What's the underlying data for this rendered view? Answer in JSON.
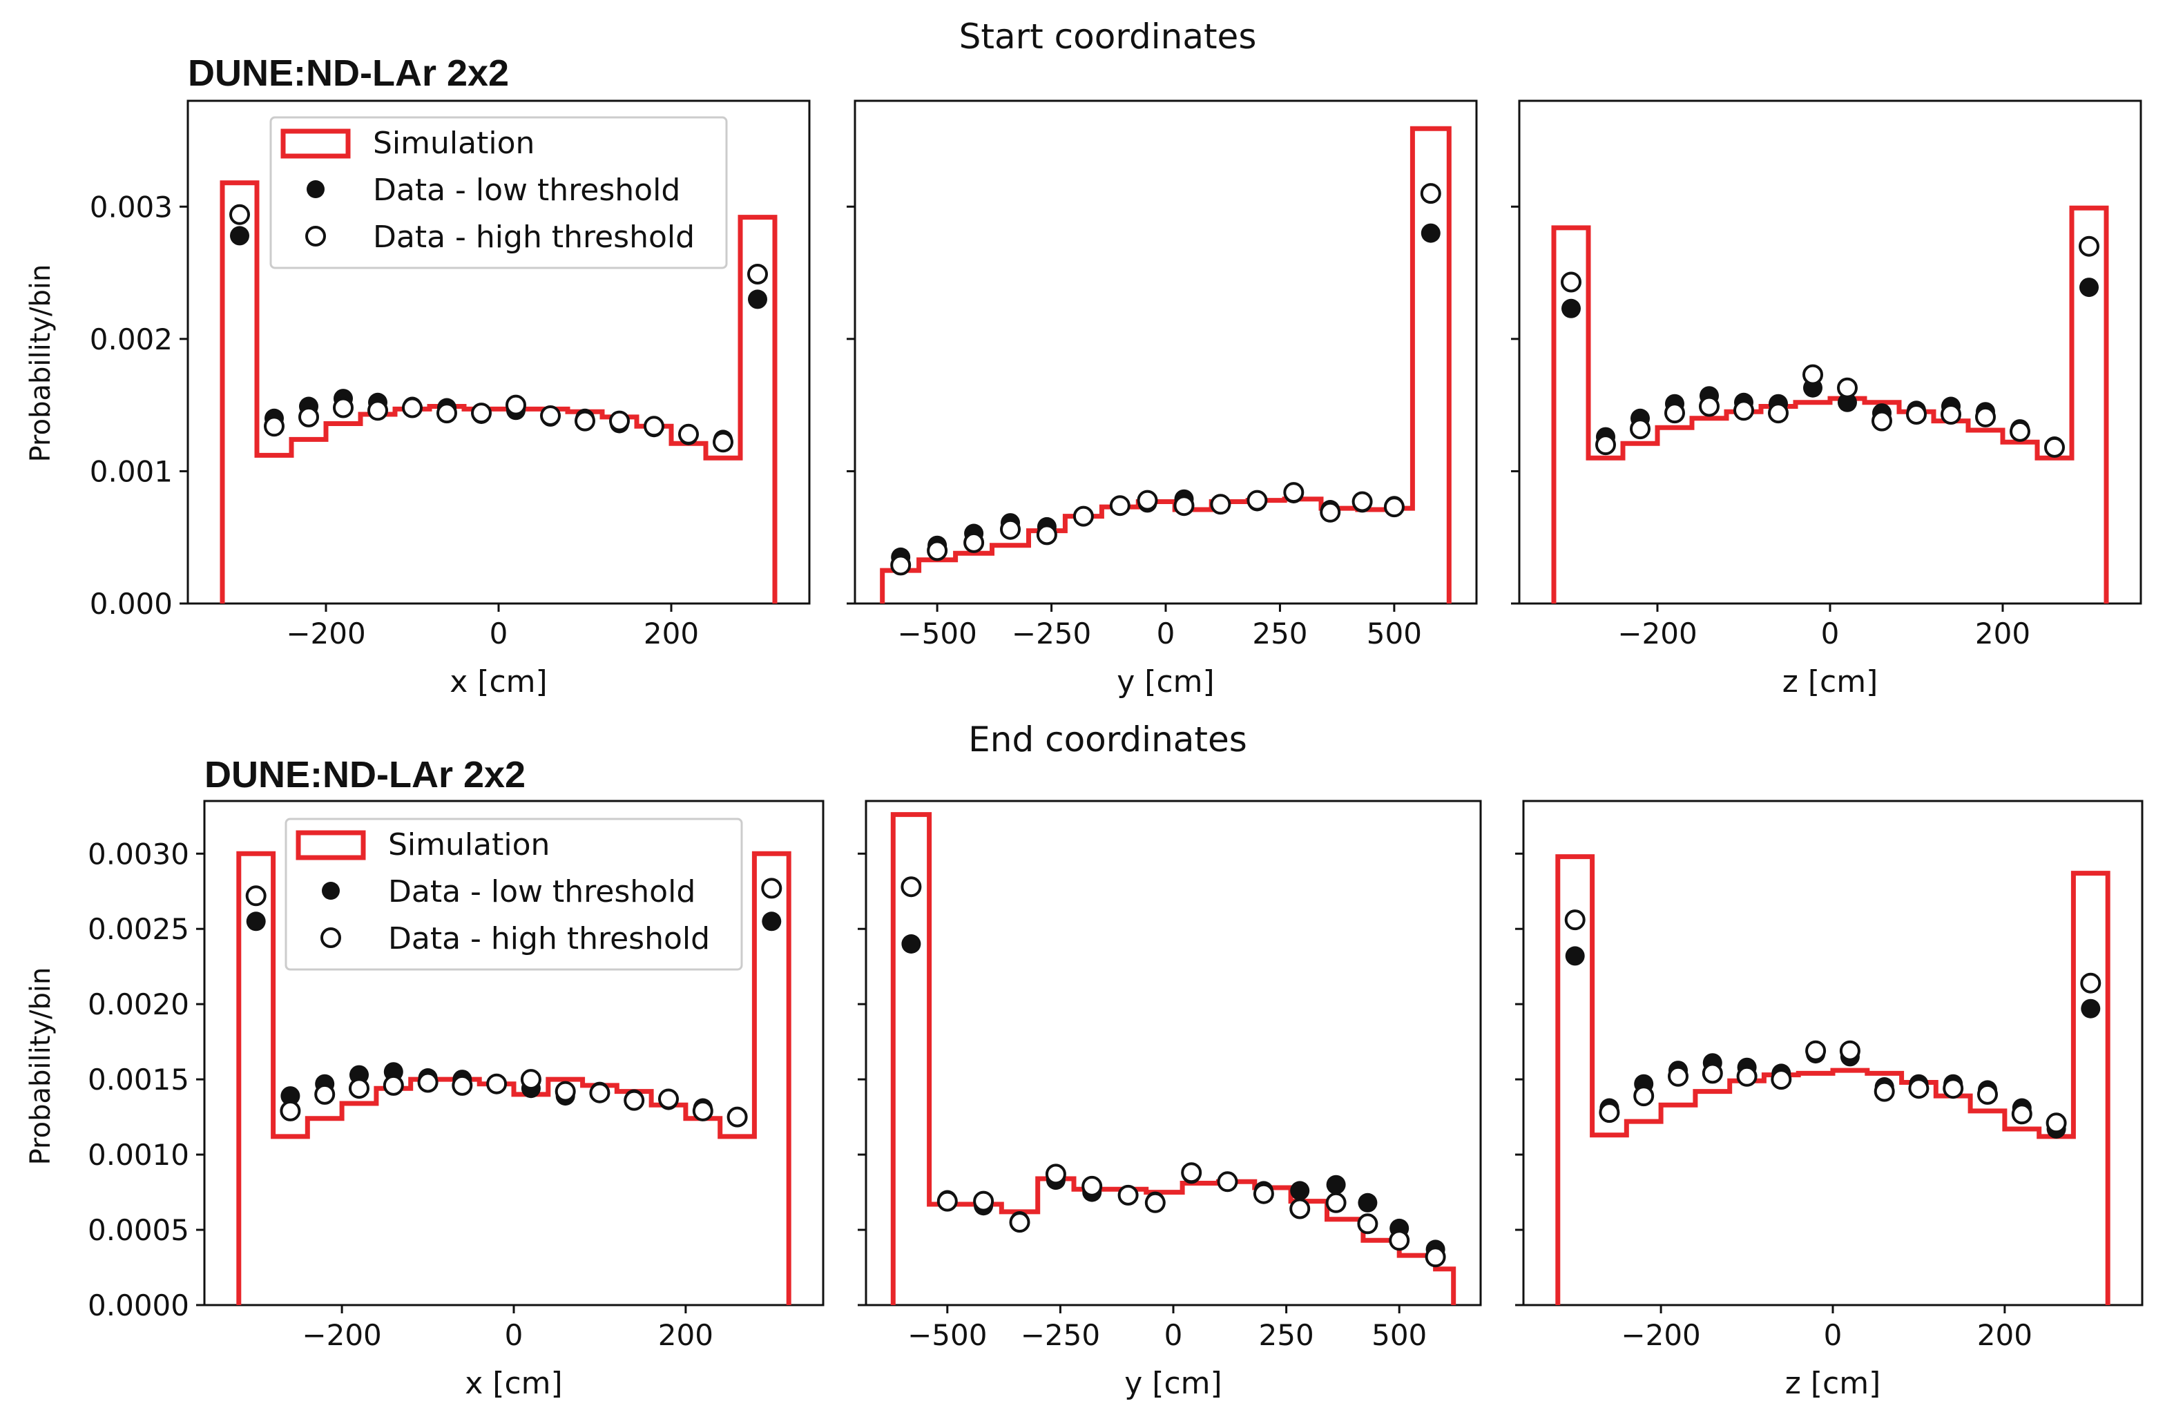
{
  "colors": {
    "simulation": "#e8262a",
    "data_low": "#111111",
    "data_high": "#ffffff",
    "axes": "#111111"
  },
  "legend": {
    "simulation": "Simulation",
    "data_low": "Data - low threshold",
    "data_high": "Data - high threshold"
  },
  "chart_data": [
    {
      "id": "start",
      "type": "scatter",
      "section_title": "Start coordinates",
      "brand": "DUNE:ND-LAr 2x2",
      "ylabel": "Probability/bin",
      "ylim": [
        0,
        0.0038
      ],
      "yticks": [
        0,
        0.001,
        0.002,
        0.003
      ],
      "ytick_labels": [
        "0.000",
        "0.001",
        "0.002",
        "0.003"
      ],
      "panels": [
        {
          "xlabel": "x [cm]",
          "xlim": [
            -360,
            360
          ],
          "xticks": [
            -200,
            0,
            200
          ],
          "xtick_labels": [
            "−200",
            "0",
            "200"
          ],
          "simulation": {
            "edges": [
              -320,
              -280,
              -240,
              -200,
              -160,
              -120,
              -80,
              -40,
              0,
              40,
              80,
              120,
              160,
              200,
              240,
              280,
              320
            ],
            "values": [
              0.00318,
              0.00112,
              0.00124,
              0.00136,
              0.00143,
              0.00147,
              0.00149,
              0.00147,
              0.00147,
              0.00147,
              0.00145,
              0.00141,
              0.00134,
              0.00121,
              0.0011,
              0.00292
            ]
          },
          "data_low": {
            "x": [
              -300,
              -260,
              -220,
              -180,
              -140,
              -100,
              -60,
              -20,
              20,
              60,
              100,
              140,
              180,
              220,
              260,
              300
            ],
            "y": [
              0.00278,
              0.0014,
              0.00149,
              0.00155,
              0.00152,
              0.00149,
              0.00148,
              0.00143,
              0.00146,
              0.00141,
              0.0014,
              0.00136,
              0.00133,
              0.00127,
              0.00124,
              0.0023
            ]
          },
          "data_high": {
            "x": [
              -300,
              -260,
              -220,
              -180,
              -140,
              -100,
              -60,
              -20,
              20,
              60,
              100,
              140,
              180,
              220,
              260,
              300
            ],
            "y": [
              0.00294,
              0.00134,
              0.00141,
              0.00148,
              0.00146,
              0.00148,
              0.00144,
              0.00144,
              0.0015,
              0.00142,
              0.00138,
              0.00138,
              0.00134,
              0.00128,
              0.00122,
              0.00249
            ]
          }
        },
        {
          "xlabel": "y [cm]",
          "xlim": [
            -680,
            680
          ],
          "xticks": [
            -500,
            -250,
            0,
            250,
            500
          ],
          "xtick_labels": [
            "−500",
            "−250",
            "0",
            "250",
            "500"
          ],
          "simulation": {
            "edges": [
              -620,
              -540,
              -460,
              -380,
              -300,
              -220,
              -140,
              -60,
              20,
              100,
              180,
              260,
              340,
              420,
              500,
              540,
              620
            ],
            "values": [
              0.00025,
              0.00033,
              0.00038,
              0.00044,
              0.00055,
              0.00066,
              0.00073,
              0.00077,
              0.00071,
              0.00077,
              0.00078,
              0.00079,
              0.00072,
              0.00071,
              0.00072,
              0.00359
            ]
          },
          "data_low": {
            "x": [
              -580,
              -500,
              -420,
              -340,
              -260,
              -180,
              -100,
              -40,
              40,
              120,
              200,
              280,
              360,
              430,
              500,
              580
            ],
            "y": [
              0.00035,
              0.00044,
              0.00053,
              0.00061,
              0.00058,
              0.00066,
              0.00074,
              0.00076,
              0.00079,
              0.00075,
              0.00077,
              0.00083,
              0.00071,
              0.00076,
              0.00074,
              0.0028
            ]
          },
          "data_high": {
            "x": [
              -580,
              -500,
              -420,
              -340,
              -260,
              -180,
              -100,
              -40,
              40,
              120,
              200,
              280,
              360,
              430,
              500,
              580
            ],
            "y": [
              0.00029,
              0.0004,
              0.00046,
              0.00056,
              0.00052,
              0.00066,
              0.00074,
              0.00078,
              0.00074,
              0.00075,
              0.00078,
              0.00084,
              0.00069,
              0.00077,
              0.00073,
              0.0031
            ]
          }
        },
        {
          "xlabel": "z [cm]",
          "xlim": [
            -360,
            360
          ],
          "xticks": [
            -200,
            0,
            200
          ],
          "xtick_labels": [
            "−200",
            "0",
            "200"
          ],
          "simulation": {
            "edges": [
              -320,
              -280,
              -240,
              -200,
              -160,
              -120,
              -80,
              -40,
              0,
              40,
              80,
              120,
              160,
              200,
              240,
              280,
              320
            ],
            "values": [
              0.00284,
              0.0011,
              0.00121,
              0.00133,
              0.0014,
              0.00145,
              0.00149,
              0.00152,
              0.00155,
              0.00152,
              0.00145,
              0.00138,
              0.00131,
              0.00122,
              0.0011,
              0.00299
            ]
          },
          "data_low": {
            "x": [
              -300,
              -260,
              -220,
              -180,
              -140,
              -100,
              -60,
              -20,
              20,
              60,
              100,
              140,
              180,
              220,
              260,
              300
            ],
            "y": [
              0.00223,
              0.00126,
              0.0014,
              0.00151,
              0.00157,
              0.00152,
              0.00151,
              0.00163,
              0.00152,
              0.00144,
              0.00146,
              0.00149,
              0.00145,
              0.00132,
              0.00119,
              0.00239
            ]
          },
          "data_high": {
            "x": [
              -300,
              -260,
              -220,
              -180,
              -140,
              -100,
              -60,
              -20,
              20,
              60,
              100,
              140,
              180,
              220,
              260,
              300
            ],
            "y": [
              0.00243,
              0.0012,
              0.00132,
              0.00144,
              0.00149,
              0.00146,
              0.00144,
              0.00173,
              0.00163,
              0.00138,
              0.00143,
              0.00143,
              0.00141,
              0.0013,
              0.00118,
              0.0027
            ]
          }
        }
      ]
    },
    {
      "id": "end",
      "type": "scatter",
      "section_title": "End coordinates",
      "brand": "DUNE:ND-LAr 2x2",
      "ylabel": "Probability/bin",
      "ylim": [
        0,
        0.00335
      ],
      "yticks": [
        0,
        0.0005,
        0.001,
        0.0015,
        0.002,
        0.0025,
        0.003
      ],
      "ytick_labels": [
        "0.0000",
        "0.0005",
        "0.0010",
        "0.0015",
        "0.0020",
        "0.0025",
        "0.0030"
      ],
      "panels": [
        {
          "xlabel": "x [cm]",
          "xlim": [
            -360,
            360
          ],
          "xticks": [
            -200,
            0,
            200
          ],
          "xtick_labels": [
            "−200",
            "0",
            "200"
          ],
          "simulation": {
            "edges": [
              -320,
              -280,
              -240,
              -200,
              -160,
              -120,
              -80,
              -40,
              0,
              40,
              80,
              120,
              160,
              200,
              240,
              280,
              320
            ],
            "values": [
              0.003,
              0.00112,
              0.00124,
              0.00134,
              0.00144,
              0.0015,
              0.0015,
              0.00147,
              0.0014,
              0.0015,
              0.00146,
              0.00142,
              0.00133,
              0.00124,
              0.00112,
              0.003
            ]
          },
          "data_low": {
            "x": [
              -300,
              -260,
              -220,
              -180,
              -140,
              -100,
              -60,
              -20,
              20,
              60,
              100,
              140,
              180,
              220,
              260,
              300
            ],
            "y": [
              0.00255,
              0.00139,
              0.00147,
              0.00153,
              0.00155,
              0.00151,
              0.0015,
              0.00147,
              0.00144,
              0.00139,
              0.00142,
              0.00137,
              0.00136,
              0.00131,
              0.00125,
              0.00255
            ]
          },
          "data_high": {
            "x": [
              -300,
              -260,
              -220,
              -180,
              -140,
              -100,
              -60,
              -20,
              20,
              60,
              100,
              140,
              180,
              220,
              260,
              300
            ],
            "y": [
              0.00272,
              0.00129,
              0.0014,
              0.00144,
              0.00146,
              0.00148,
              0.00146,
              0.00147,
              0.0015,
              0.00142,
              0.00141,
              0.00136,
              0.00137,
              0.00129,
              0.00125,
              0.00277
            ]
          }
        },
        {
          "xlabel": "y [cm]",
          "xlim": [
            -680,
            680
          ],
          "xticks": [
            -500,
            -250,
            0,
            250,
            500
          ],
          "xtick_labels": [
            "−500",
            "−250",
            "0",
            "250",
            "500"
          ],
          "simulation": {
            "edges": [
              -620,
              -540,
              -460,
              -380,
              -300,
              -220,
              -140,
              -60,
              20,
              100,
              180,
              260,
              340,
              420,
              500,
              580,
              620
            ],
            "values": [
              0.00326,
              0.00067,
              0.00067,
              0.00062,
              0.00084,
              0.00077,
              0.00077,
              0.00075,
              0.00081,
              0.00082,
              0.00078,
              0.00069,
              0.00057,
              0.00043,
              0.00033,
              0.00024
            ]
          },
          "data_low": {
            "x": [
              -580,
              -500,
              -420,
              -340,
              -260,
              -180,
              -100,
              -40,
              40,
              120,
              200,
              280,
              360,
              430,
              500,
              580
            ],
            "y": [
              0.0024,
              0.0007,
              0.00066,
              0.00056,
              0.00083,
              0.00075,
              0.00073,
              0.00069,
              0.00087,
              0.00082,
              0.00076,
              0.00076,
              0.0008,
              0.00068,
              0.00051,
              0.00037
            ]
          },
          "data_high": {
            "x": [
              -580,
              -500,
              -420,
              -340,
              -260,
              -180,
              -100,
              -40,
              40,
              120,
              200,
              280,
              360,
              430,
              500,
              580
            ],
            "y": [
              0.00278,
              0.00069,
              0.00069,
              0.00055,
              0.00087,
              0.00079,
              0.00073,
              0.00068,
              0.00088,
              0.00082,
              0.00074,
              0.00064,
              0.00068,
              0.00054,
              0.00043,
              0.00032
            ]
          }
        },
        {
          "xlabel": "z [cm]",
          "xlim": [
            -360,
            360
          ],
          "xticks": [
            -200,
            0,
            200
          ],
          "xtick_labels": [
            "−200",
            "0",
            "200"
          ],
          "simulation": {
            "edges": [
              -320,
              -280,
              -240,
              -200,
              -160,
              -120,
              -80,
              -40,
              0,
              40,
              80,
              120,
              160,
              200,
              240,
              280,
              320
            ],
            "values": [
              0.00298,
              0.00113,
              0.00122,
              0.00133,
              0.00142,
              0.00149,
              0.00153,
              0.00154,
              0.00156,
              0.00154,
              0.00148,
              0.00139,
              0.00129,
              0.00117,
              0.00112,
              0.00287
            ]
          },
          "data_low": {
            "x": [
              -300,
              -260,
              -220,
              -180,
              -140,
              -100,
              -60,
              -20,
              20,
              60,
              100,
              140,
              180,
              220,
              260,
              300
            ],
            "y": [
              0.00232,
              0.00131,
              0.00147,
              0.00156,
              0.00161,
              0.00158,
              0.00154,
              0.00167,
              0.00165,
              0.00145,
              0.00147,
              0.00147,
              0.00143,
              0.00131,
              0.00117,
              0.00197
            ]
          },
          "data_high": {
            "x": [
              -300,
              -260,
              -220,
              -180,
              -140,
              -100,
              -60,
              -20,
              20,
              60,
              100,
              140,
              180,
              220,
              260,
              300
            ],
            "y": [
              0.00256,
              0.00128,
              0.00139,
              0.00152,
              0.00154,
              0.00152,
              0.0015,
              0.00169,
              0.00169,
              0.00142,
              0.00144,
              0.00144,
              0.0014,
              0.00127,
              0.00121,
              0.00214
            ]
          }
        }
      ]
    }
  ]
}
